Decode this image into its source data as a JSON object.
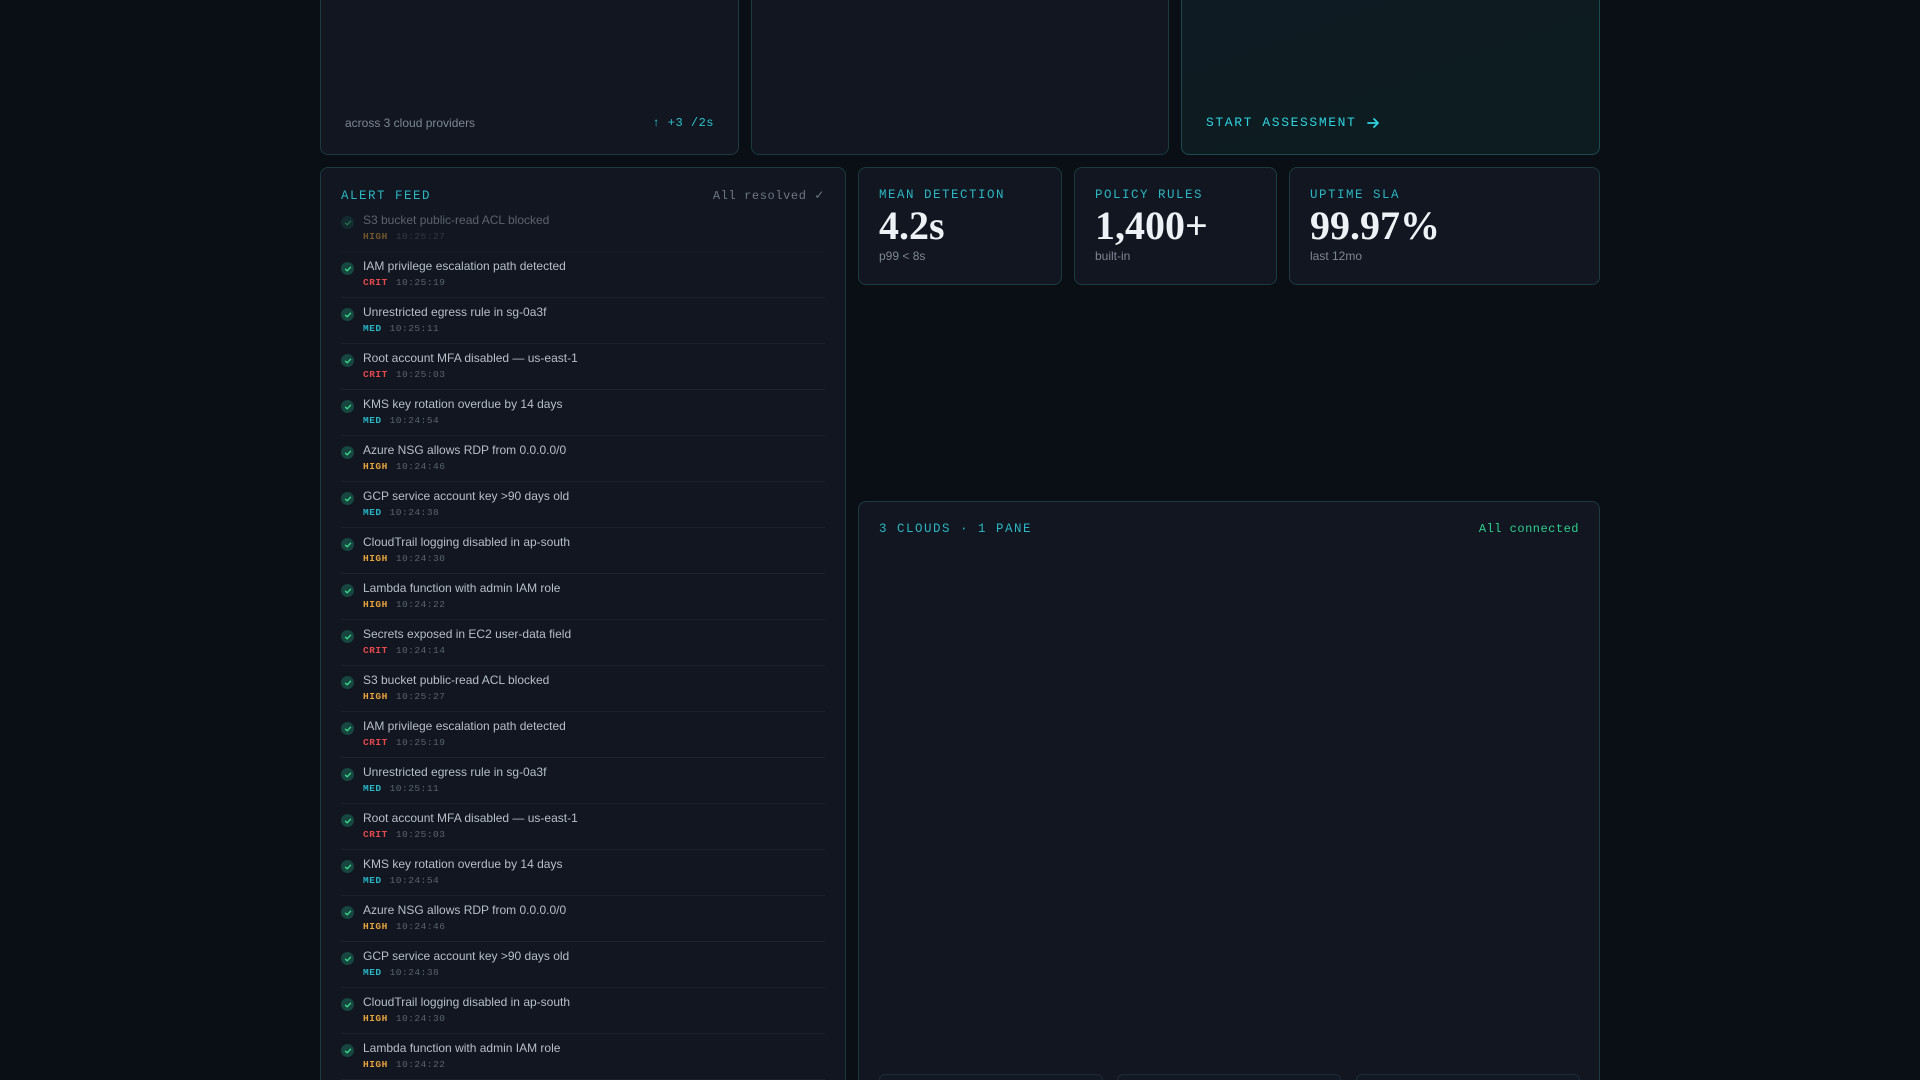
{
  "top_cards": {
    "coverage": {
      "sub": "across 3 cloud providers",
      "delta": "↑ +3 /2s"
    },
    "assessment": {
      "cta_label": "START ASSESSMENT",
      "cta_icon": "arrow-right-icon"
    }
  },
  "alert_feed": {
    "title": "ALERT FEED",
    "status": "All resolved ✓",
    "items": [
      {
        "title": "S3 bucket public-read ACL blocked",
        "severity": "HIGH",
        "time": "10:25:27"
      },
      {
        "title": "IAM privilege escalation path detected",
        "severity": "CRIT",
        "time": "10:25:19"
      },
      {
        "title": "Unrestricted egress rule in sg-0a3f",
        "severity": "MED",
        "time": "10:25:11"
      },
      {
        "title": "Root account MFA disabled — us-east-1",
        "severity": "CRIT",
        "time": "10:25:03"
      },
      {
        "title": "KMS key rotation overdue by 14 days",
        "severity": "MED",
        "time": "10:24:54"
      },
      {
        "title": "Azure NSG allows RDP from 0.0.0.0/0",
        "severity": "HIGH",
        "time": "10:24:46"
      },
      {
        "title": "GCP service account key >90 days old",
        "severity": "MED",
        "time": "10:24:38"
      },
      {
        "title": "CloudTrail logging disabled in ap-south",
        "severity": "HIGH",
        "time": "10:24:30"
      },
      {
        "title": "Lambda function with admin IAM role",
        "severity": "HIGH",
        "time": "10:24:22"
      },
      {
        "title": "Secrets exposed in EC2 user-data field",
        "severity": "CRIT",
        "time": "10:24:14"
      },
      {
        "title": "S3 bucket public-read ACL blocked",
        "severity": "HIGH",
        "time": "10:25:27"
      },
      {
        "title": "IAM privilege escalation path detected",
        "severity": "CRIT",
        "time": "10:25:19"
      },
      {
        "title": "Unrestricted egress rule in sg-0a3f",
        "severity": "MED",
        "time": "10:25:11"
      },
      {
        "title": "Root account MFA disabled — us-east-1",
        "severity": "CRIT",
        "time": "10:25:03"
      },
      {
        "title": "KMS key rotation overdue by 14 days",
        "severity": "MED",
        "time": "10:24:54"
      },
      {
        "title": "Azure NSG allows RDP from 0.0.0.0/0",
        "severity": "HIGH",
        "time": "10:24:46"
      },
      {
        "title": "GCP service account key >90 days old",
        "severity": "MED",
        "time": "10:24:38"
      },
      {
        "title": "CloudTrail logging disabled in ap-south",
        "severity": "HIGH",
        "time": "10:24:30"
      },
      {
        "title": "Lambda function with admin IAM role",
        "severity": "HIGH",
        "time": "10:24:22"
      }
    ]
  },
  "stats": {
    "mean_detection": {
      "label": "MEAN DETECTION",
      "value": "4.2s",
      "sub": "p99 < 8s"
    },
    "policy_rules": {
      "label": "POLICY RULES",
      "value": "1,400+",
      "sub": "built-in"
    },
    "uptime_sla": {
      "label": "UPTIME SLA",
      "value": "99.97%",
      "sub": "last 12mo"
    }
  },
  "clouds": {
    "title": "3 CLOUDS · 1 PANE",
    "status": "All connected"
  },
  "colors": {
    "accent": "#2cb5c2",
    "severity_high": "#e6a23c",
    "severity_crit": "#e5484d",
    "severity_med": "#2bb6c8",
    "connected": "#2ecf8e"
  }
}
